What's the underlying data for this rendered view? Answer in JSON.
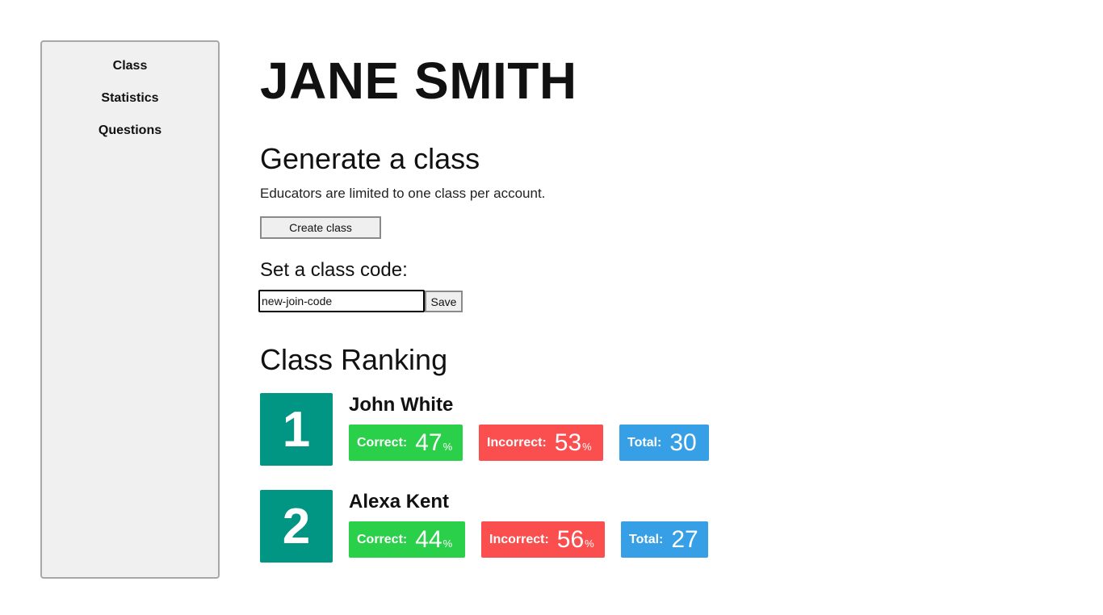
{
  "sidebar": {
    "items": [
      {
        "label": "Class"
      },
      {
        "label": "Statistics"
      },
      {
        "label": "Questions"
      }
    ]
  },
  "main": {
    "title": "JANE SMITH",
    "generate": {
      "heading": "Generate a class",
      "description": "Educators are limited to one class per account.",
      "create_button": "Create class"
    },
    "class_code": {
      "label": "Set a class code:",
      "input_value": "new-join-code",
      "save_button": "Save"
    },
    "ranking": {
      "heading": "Class Ranking",
      "correct_label": "Correct:",
      "incorrect_label": "Incorrect:",
      "total_label": "Total:",
      "percent_unit": "%",
      "students": [
        {
          "rank": "1",
          "name": "John White",
          "correct": "47",
          "incorrect": "53",
          "total": "30"
        },
        {
          "rank": "2",
          "name": "Alexa Kent",
          "correct": "44",
          "incorrect": "56",
          "total": "27"
        }
      ]
    }
  },
  "colors": {
    "rank_badge": "#009683",
    "correct": "#2bd04a",
    "incorrect": "#fb4e4e",
    "total": "#369fe6"
  }
}
